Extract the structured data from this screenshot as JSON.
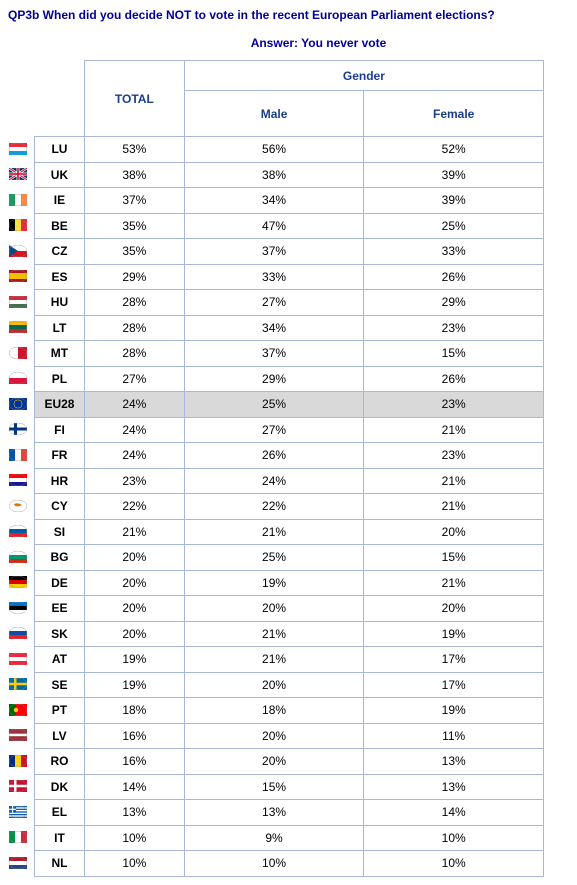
{
  "question": "QP3b When did you decide NOT to vote in the recent European Parliament elections?",
  "answer": "Answer: You never vote",
  "headers": {
    "total": "TOTAL",
    "gender": "Gender",
    "male": "Male",
    "female": "Female"
  },
  "colors": {
    "header_text": "#1a3e8c",
    "question_text": "#000099",
    "border": "#a8b8d8",
    "highlight_bg": "#d9d9d9"
  },
  "rows": [
    {
      "code": "LU",
      "total": "53%",
      "male": "56%",
      "female": "52%",
      "hl": false,
      "flag": "lu"
    },
    {
      "code": "UK",
      "total": "38%",
      "male": "38%",
      "female": "39%",
      "hl": false,
      "flag": "uk"
    },
    {
      "code": "IE",
      "total": "37%",
      "male": "34%",
      "female": "39%",
      "hl": false,
      "flag": "ie"
    },
    {
      "code": "BE",
      "total": "35%",
      "male": "47%",
      "female": "25%",
      "hl": false,
      "flag": "be"
    },
    {
      "code": "CZ",
      "total": "35%",
      "male": "37%",
      "female": "33%",
      "hl": false,
      "flag": "cz"
    },
    {
      "code": "ES",
      "total": "29%",
      "male": "33%",
      "female": "26%",
      "hl": false,
      "flag": "es"
    },
    {
      "code": "HU",
      "total": "28%",
      "male": "27%",
      "female": "29%",
      "hl": false,
      "flag": "hu"
    },
    {
      "code": "LT",
      "total": "28%",
      "male": "34%",
      "female": "23%",
      "hl": false,
      "flag": "lt"
    },
    {
      "code": "MT",
      "total": "28%",
      "male": "37%",
      "female": "15%",
      "hl": false,
      "flag": "mt"
    },
    {
      "code": "PL",
      "total": "27%",
      "male": "29%",
      "female": "26%",
      "hl": false,
      "flag": "pl"
    },
    {
      "code": "EU28",
      "total": "24%",
      "male": "25%",
      "female": "23%",
      "hl": true,
      "flag": "eu"
    },
    {
      "code": "FI",
      "total": "24%",
      "male": "27%",
      "female": "21%",
      "hl": false,
      "flag": "fi"
    },
    {
      "code": "FR",
      "total": "24%",
      "male": "26%",
      "female": "23%",
      "hl": false,
      "flag": "fr"
    },
    {
      "code": "HR",
      "total": "23%",
      "male": "24%",
      "female": "21%",
      "hl": false,
      "flag": "hr"
    },
    {
      "code": "CY",
      "total": "22%",
      "male": "22%",
      "female": "21%",
      "hl": false,
      "flag": "cy"
    },
    {
      "code": "SI",
      "total": "21%",
      "male": "21%",
      "female": "20%",
      "hl": false,
      "flag": "si"
    },
    {
      "code": "BG",
      "total": "20%",
      "male": "25%",
      "female": "15%",
      "hl": false,
      "flag": "bg"
    },
    {
      "code": "DE",
      "total": "20%",
      "male": "19%",
      "female": "21%",
      "hl": false,
      "flag": "de"
    },
    {
      "code": "EE",
      "total": "20%",
      "male": "20%",
      "female": "20%",
      "hl": false,
      "flag": "ee"
    },
    {
      "code": "SK",
      "total": "20%",
      "male": "21%",
      "female": "19%",
      "hl": false,
      "flag": "sk"
    },
    {
      "code": "AT",
      "total": "19%",
      "male": "21%",
      "female": "17%",
      "hl": false,
      "flag": "at"
    },
    {
      "code": "SE",
      "total": "19%",
      "male": "20%",
      "female": "17%",
      "hl": false,
      "flag": "se"
    },
    {
      "code": "PT",
      "total": "18%",
      "male": "18%",
      "female": "19%",
      "hl": false,
      "flag": "pt"
    },
    {
      "code": "LV",
      "total": "16%",
      "male": "20%",
      "female": "11%",
      "hl": false,
      "flag": "lv"
    },
    {
      "code": "RO",
      "total": "16%",
      "male": "20%",
      "female": "13%",
      "hl": false,
      "flag": "ro"
    },
    {
      "code": "DK",
      "total": "14%",
      "male": "15%",
      "female": "13%",
      "hl": false,
      "flag": "dk"
    },
    {
      "code": "EL",
      "total": "13%",
      "male": "13%",
      "female": "14%",
      "hl": false,
      "flag": "el"
    },
    {
      "code": "IT",
      "total": "10%",
      "male": "9%",
      "female": "10%",
      "hl": false,
      "flag": "it"
    },
    {
      "code": "NL",
      "total": "10%",
      "male": "10%",
      "female": "10%",
      "hl": false,
      "flag": "nl"
    }
  ]
}
